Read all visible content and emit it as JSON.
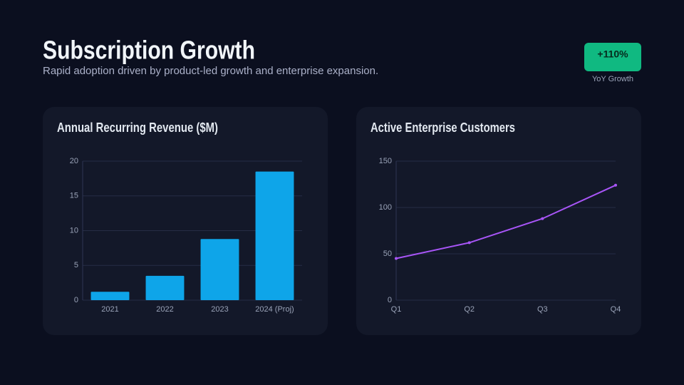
{
  "header": {
    "title": "Subscription Growth",
    "subtitle": "Rapid adoption driven by product-led growth and enterprise expansion."
  },
  "badge": {
    "value": "+110%",
    "label": "YoY Growth"
  },
  "chart_data": [
    {
      "type": "bar",
      "title": "Annual Recurring Revenue ($M)",
      "categories": [
        "2021",
        "2022",
        "2023",
        "2024 (Proj)"
      ],
      "values": [
        1.2,
        3.5,
        8.8,
        18.5
      ],
      "color": "#0ea5e9",
      "ylim": [
        0,
        20
      ],
      "yticks": [
        0,
        5,
        10,
        15,
        20
      ],
      "grid": true
    },
    {
      "type": "line",
      "title": "Active Enterprise Customers",
      "categories": [
        "Q1",
        "Q2",
        "Q3",
        "Q4"
      ],
      "values": [
        45,
        62,
        88,
        124
      ],
      "color": "#a855f7",
      "ylim": [
        0,
        150
      ],
      "yticks": [
        0,
        50,
        100,
        150
      ],
      "grid": true
    }
  ]
}
